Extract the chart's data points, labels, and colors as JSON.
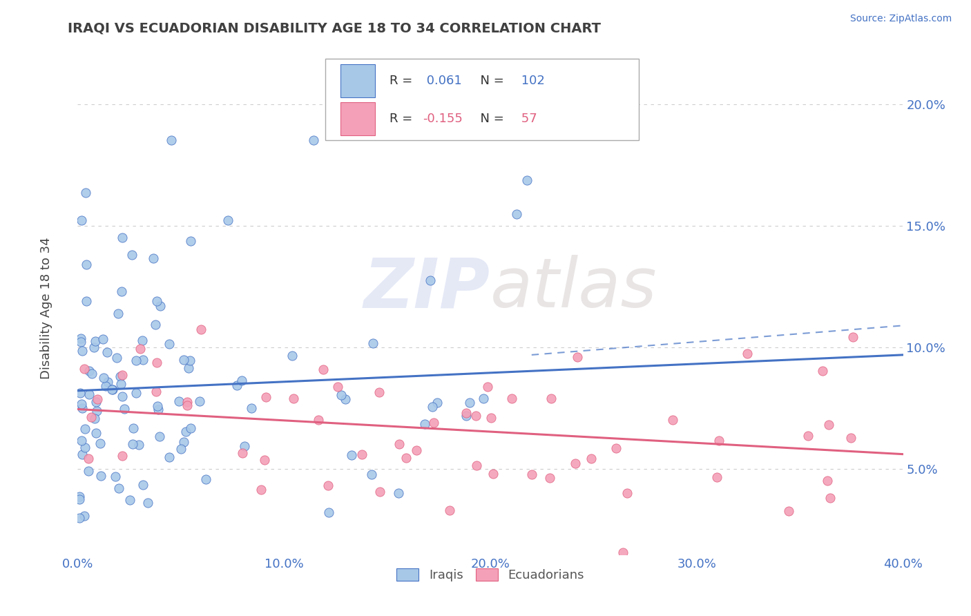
{
  "title": "IRAQI VS ECUADORIAN DISABILITY AGE 18 TO 34 CORRELATION CHART",
  "source_text": "Source: ZipAtlas.com",
  "ylabel": "Disability Age 18 to 34",
  "legend_label1": "Iraqis",
  "legend_label2": "Ecuadorians",
  "R1": 0.061,
  "N1": 102,
  "R2": -0.155,
  "N2": 57,
  "color1": "#a8c8e8",
  "color2": "#f4a0b8",
  "trendline1_color": "#4472c4",
  "trendline2_color": "#e06080",
  "xmin": 0.0,
  "xmax": 0.4,
  "ymin": 0.015,
  "ymax": 0.225,
  "yticks": [
    0.05,
    0.1,
    0.15,
    0.2
  ],
  "ytick_labels": [
    "5.0%",
    "10.0%",
    "15.0%",
    "20.0%"
  ],
  "xticks": [
    0.0,
    0.1,
    0.2,
    0.3,
    0.4
  ],
  "xtick_labels": [
    "0.0%",
    "10.0%",
    "20.0%",
    "30.0%",
    "40.0%"
  ],
  "watermark_zip": "ZIP",
  "watermark_atlas": "atlas",
  "background_color": "#ffffff",
  "grid_color": "#c8c8c8",
  "tick_color": "#4472c4",
  "title_color": "#404040",
  "source_color": "#4472c4"
}
